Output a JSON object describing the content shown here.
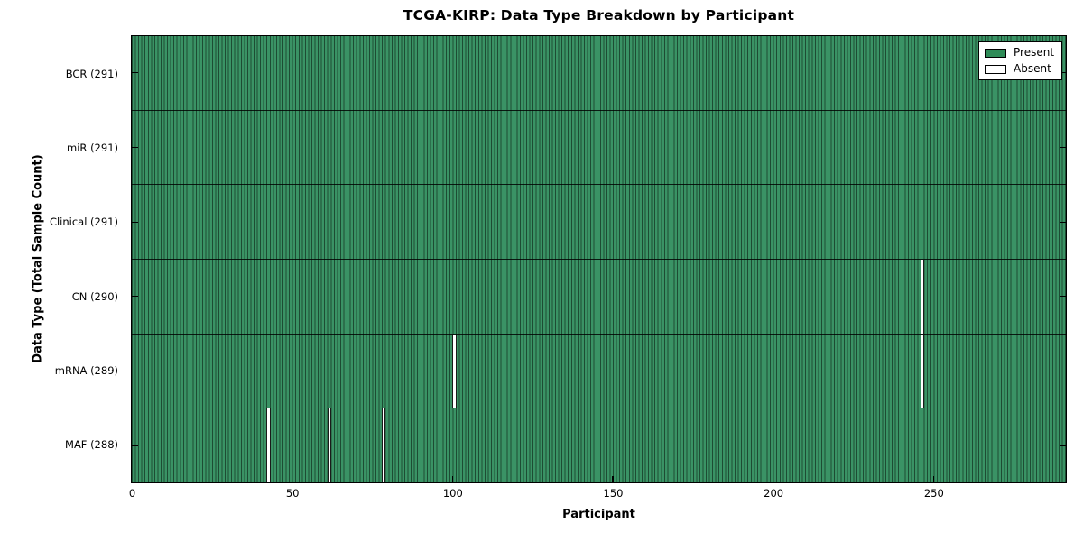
{
  "title": "TCGA-KIRP: Data Type Breakdown by Participant",
  "xlabel": "Participant",
  "ylabel": "Data Type (Total Sample Count)",
  "legend": [
    {
      "label": "Present",
      "color": "#2e8b57"
    },
    {
      "label": "Absent",
      "color": "#ffffff"
    }
  ],
  "chart_data": {
    "type": "heatmap",
    "description": "Per-participant presence/absence matrix; each of 291 participants is a thin vertical bar in each data-type row; green = present, white = absent",
    "total_participants": 291,
    "x_range": [
      0,
      291
    ],
    "x_ticks": [
      0,
      50,
      100,
      150,
      200,
      250
    ],
    "grid": false,
    "legend_position": "upper right",
    "rows": [
      {
        "label": "BCR (291)",
        "data_type": "BCR",
        "present_count": 291,
        "absent_participants": []
      },
      {
        "label": "miR (291)",
        "data_type": "miR",
        "present_count": 291,
        "absent_participants": []
      },
      {
        "label": "Clinical (291)",
        "data_type": "Clinical",
        "present_count": 291,
        "absent_participants": []
      },
      {
        "label": "CN (290)",
        "data_type": "CN",
        "present_count": 290,
        "absent_participants": [
          246
        ]
      },
      {
        "label": "mRNA (289)",
        "data_type": "mRNA",
        "present_count": 289,
        "absent_participants": [
          100,
          246
        ]
      },
      {
        "label": "MAF (288)",
        "data_type": "MAF",
        "present_count": 288,
        "absent_participants": [
          42,
          61,
          78
        ]
      }
    ],
    "colors": {
      "present_fill": "#3a9365",
      "bar_edge": "#1d4c33",
      "absent_fill": "#ffffff",
      "row_boundary": "#000000",
      "axes_frame": "#000000"
    }
  }
}
